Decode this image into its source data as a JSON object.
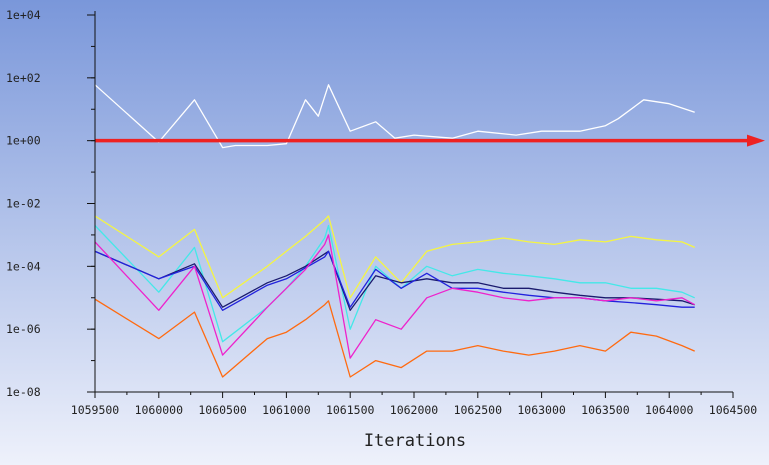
{
  "chart_data": {
    "type": "line",
    "title": "",
    "xlabel": "Iterations",
    "ylabel": "",
    "yscale": "log",
    "xlim": [
      1059500,
      1064500
    ],
    "ylim": [
      1e-08,
      10000
    ],
    "xticks": [
      1059500,
      1060000,
      1060500,
      1061000,
      1061500,
      1062000,
      1062500,
      1063000,
      1063500,
      1064000,
      1064500
    ],
    "xtick_labels": [
      "1059500",
      "1060000",
      "1060500",
      "1061000",
      "1061500",
      "1062000",
      "1062500",
      "1063000",
      "1063500",
      "1064000",
      "1064500"
    ],
    "ytick_labels": [
      "1e-08",
      "1e-06",
      "1e-04",
      "1e-02",
      "1e+00",
      "1e+02",
      "1e+04"
    ],
    "grid": false,
    "legend": "none",
    "background": {
      "top": "#7a97da",
      "bottom": "#eef1fb"
    },
    "series": [
      {
        "color": "#ffffff",
        "x": [
          1059500,
          1060000,
          1060280,
          1060500,
          1060600,
          1060850,
          1061000,
          1061150,
          1061250,
          1061330,
          1061500,
          1061700,
          1061850,
          1062000,
          1062300,
          1062500,
          1062800,
          1063000,
          1063300,
          1063500,
          1063600,
          1063800,
          1064000,
          1064200
        ],
        "y": [
          60,
          0.9,
          20,
          0.6,
          0.7,
          0.7,
          0.8,
          20,
          6,
          60,
          2,
          4,
          1.2,
          1.5,
          1.2,
          2,
          1.5,
          2,
          2,
          3,
          5,
          20,
          15,
          8
        ]
      },
      {
        "color": "#f5f542",
        "x": [
          1059500,
          1060000,
          1060280,
          1060500,
          1060850,
          1061000,
          1061150,
          1061300,
          1061330,
          1061500,
          1061700,
          1061900,
          1062100,
          1062300,
          1062500,
          1062700,
          1062900,
          1063100,
          1063300,
          1063500,
          1063700,
          1063900,
          1064100,
          1064200
        ],
        "y": [
          0.004,
          0.0002,
          0.0015,
          1e-05,
          0.0001,
          0.0003,
          0.0009,
          0.003,
          0.004,
          1e-05,
          0.0002,
          3e-05,
          0.0003,
          0.0005,
          0.0006,
          0.0008,
          0.0006,
          0.0005,
          0.0007,
          0.0006,
          0.0009,
          0.0007,
          0.0006,
          0.0004
        ]
      },
      {
        "color": "#44e8e8",
        "x": [
          1059500,
          1060000,
          1060280,
          1060500,
          1060850,
          1061000,
          1061150,
          1061300,
          1061330,
          1061500,
          1061700,
          1061900,
          1062100,
          1062300,
          1062500,
          1062700,
          1062900,
          1063100,
          1063300,
          1063500,
          1063700,
          1063900,
          1064100,
          1064200
        ],
        "y": [
          0.002,
          1.5e-05,
          0.0004,
          4e-07,
          5e-06,
          2e-05,
          0.0001,
          0.0008,
          0.002,
          1e-06,
          0.0001,
          2e-05,
          0.0001,
          5e-05,
          8e-05,
          6e-05,
          5e-05,
          4e-05,
          3e-05,
          3e-05,
          2e-05,
          2e-05,
          1.5e-05,
          1e-05
        ]
      },
      {
        "color": "#1a1a6e",
        "x": [
          1059500,
          1060000,
          1060280,
          1060500,
          1060850,
          1061000,
          1061150,
          1061300,
          1061330,
          1061500,
          1061700,
          1061900,
          1062100,
          1062300,
          1062500,
          1062700,
          1062900,
          1063100,
          1063300,
          1063500,
          1063700,
          1063900,
          1064100,
          1064200
        ],
        "y": [
          0.0003,
          4e-05,
          0.00012,
          5e-06,
          3e-05,
          5e-05,
          0.0001,
          0.00025,
          0.0003,
          4e-06,
          5e-05,
          3e-05,
          4e-05,
          3e-05,
          3e-05,
          2e-05,
          2e-05,
          1.5e-05,
          1.2e-05,
          1e-05,
          1e-05,
          9e-06,
          8e-06,
          6e-06
        ]
      },
      {
        "color": "#2222dd",
        "x": [
          1059500,
          1060000,
          1060280,
          1060500,
          1060850,
          1061000,
          1061150,
          1061300,
          1061330,
          1061500,
          1061700,
          1061900,
          1062100,
          1062300,
          1062500,
          1062700,
          1062900,
          1063100,
          1063300,
          1063500,
          1063700,
          1063900,
          1064100,
          1064200
        ],
        "y": [
          0.0003,
          4e-05,
          0.0001,
          4e-06,
          2.5e-05,
          4e-05,
          9e-05,
          0.0002,
          0.0003,
          5e-06,
          8e-05,
          2e-05,
          6e-05,
          2e-05,
          2e-05,
          1.5e-05,
          1.2e-05,
          1e-05,
          1e-05,
          8e-06,
          7e-06,
          6e-06,
          5e-06,
          5e-06
        ]
      },
      {
        "color": "#ee22cc",
        "x": [
          1059500,
          1060000,
          1060280,
          1060500,
          1060850,
          1061000,
          1061150,
          1061300,
          1061330,
          1061500,
          1061700,
          1061900,
          1062100,
          1062300,
          1062500,
          1062700,
          1062900,
          1063100,
          1063300,
          1063500,
          1063700,
          1063900,
          1064100,
          1064200
        ],
        "y": [
          0.0006,
          4e-06,
          0.0001,
          1.5e-07,
          5e-06,
          2e-05,
          8e-05,
          0.0005,
          0.001,
          1.2e-07,
          2e-06,
          1e-06,
          1e-05,
          2e-05,
          1.5e-05,
          1e-05,
          8e-06,
          1e-05,
          1e-05,
          8e-06,
          1e-05,
          8e-06,
          1e-05,
          6e-06
        ]
      },
      {
        "color": "#ff6a10",
        "x": [
          1059500,
          1060000,
          1060280,
          1060500,
          1060850,
          1061000,
          1061150,
          1061300,
          1061330,
          1061500,
          1061700,
          1061900,
          1062100,
          1062300,
          1062500,
          1062700,
          1062900,
          1063100,
          1063300,
          1063500,
          1063700,
          1063900,
          1064100,
          1064200
        ],
        "y": [
          9e-06,
          5e-07,
          3.5e-06,
          3e-08,
          5e-07,
          8e-07,
          2e-06,
          6e-06,
          8e-06,
          3e-08,
          1e-07,
          6e-08,
          2e-07,
          2e-07,
          3e-07,
          2e-07,
          1.5e-07,
          2e-07,
          3e-07,
          2e-07,
          8e-07,
          6e-07,
          3e-07,
          2e-07
        ]
      }
    ],
    "arrow": {
      "color": "#ee2222",
      "x": [
        1059500,
        1064500
      ],
      "y": [
        1,
        1
      ]
    }
  }
}
